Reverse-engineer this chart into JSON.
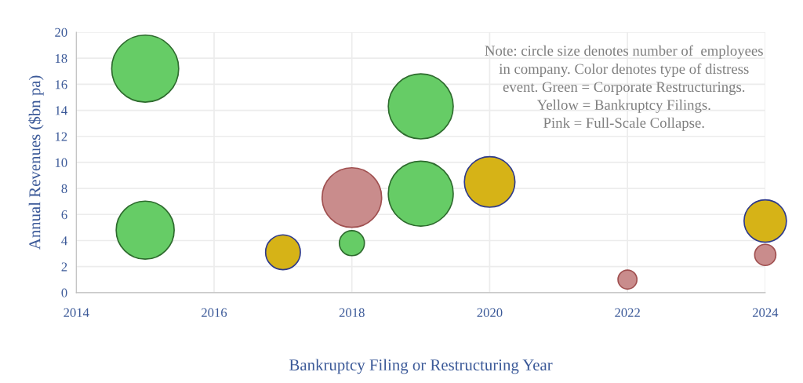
{
  "chart_data": {
    "type": "bubble",
    "xlabel": "Bankruptcy Filing or Restructuring Year",
    "ylabel": "Annual Revenues ($bn pa)",
    "xlim": [
      2014,
      2024
    ],
    "xticks": [
      2014,
      2016,
      2018,
      2020,
      2022,
      2024
    ],
    "ylim": [
      0,
      20
    ],
    "yticks": [
      0,
      2,
      4,
      6,
      8,
      10,
      12,
      14,
      16,
      18,
      20
    ],
    "grid": true,
    "series": [
      {
        "color": "#66cc66",
        "x": [
          2015,
          2015,
          2018,
          2019,
          2019
        ],
        "values": [
          17.2,
          4.8,
          3.8,
          14.3,
          7.6
        ],
        "sizes": [
          1,
          0.75,
          0.14,
          0.94,
          0.94
        ]
      },
      {
        "color": "#d6b317",
        "x": [
          2017,
          2020,
          2024
        ],
        "values": [
          3.1,
          8.5,
          5.5
        ],
        "sizes": [
          0.27,
          0.57,
          0.4
        ]
      },
      {
        "color": "#c98c8c",
        "x": [
          2018,
          2022,
          2024
        ],
        "values": [
          7.3,
          1.0,
          2.9
        ],
        "sizes": [
          0.79,
          0.08,
          0.1
        ]
      }
    ],
    "annotations": [
      "Note: circle size denotes number of  employees\nin company. Color denotes type of distress\nevent. Green = Corporate Restructurings.\nYellow = Bankruptcy Filings.\nPink = Full-Scale Collapse."
    ]
  }
}
